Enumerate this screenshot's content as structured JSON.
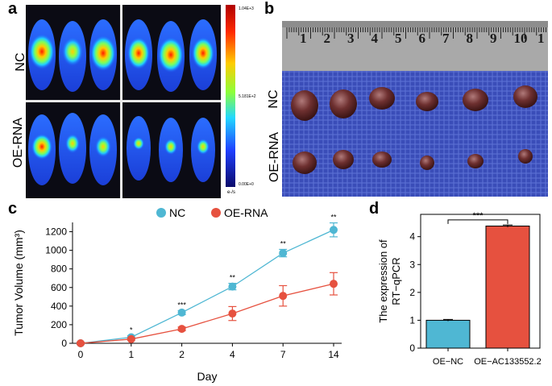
{
  "figure": {
    "panel_a": {
      "letter": "a",
      "row_labels": [
        "NC",
        "OE-RNA"
      ],
      "colorbar": {
        "max": "1.04E+3",
        "mid": "5.181E+2",
        "min": "0.00E+0",
        "unit": "e-/s"
      }
    },
    "panel_b": {
      "letter": "b",
      "row_labels": [
        "NC",
        "OE-RNA"
      ],
      "ruler_numbers": [
        "1",
        "2",
        "3",
        "4",
        "5",
        "6",
        "7",
        "8",
        "9",
        "10",
        "1"
      ]
    },
    "panel_c": {
      "letter": "c"
    },
    "panel_d": {
      "letter": "d"
    }
  },
  "chart_data": [
    {
      "type": "line",
      "title": "",
      "legend": [
        "NC",
        "OE-RNA"
      ],
      "legend_position": "top",
      "xlabel": "Day",
      "ylabel": "Tumor Volume (mm³)",
      "categories": [
        "0",
        "1",
        "2",
        "4",
        "7",
        "14"
      ],
      "ylim": [
        0,
        1300
      ],
      "yticks": [
        "0",
        "200",
        "400",
        "600",
        "800",
        "1000",
        "1200"
      ],
      "series": [
        {
          "name": "NC",
          "color": "#4fb7d3",
          "values": [
            0,
            65,
            330,
            610,
            970,
            1220
          ],
          "errors": [
            12,
            18,
            22,
            35,
            40,
            75
          ]
        },
        {
          "name": "OE-RNA",
          "color": "#e6513f",
          "values": [
            0,
            45,
            155,
            320,
            510,
            640
          ],
          "errors": [
            10,
            12,
            20,
            75,
            110,
            120
          ]
        }
      ],
      "significance": [
        "",
        "*",
        "***",
        "**",
        "**",
        "**"
      ]
    },
    {
      "type": "bar",
      "title": "",
      "ylabel": "The expression of RT−qPCR",
      "categories": [
        "OE−NC",
        "OE−AC133552.2"
      ],
      "values": [
        1.0,
        4.38
      ],
      "errors": [
        0.03,
        0.04
      ],
      "colors": [
        "#4fb7d3",
        "#e6513f"
      ],
      "ylim": [
        0,
        4.8
      ],
      "yticks": [
        "0",
        "1",
        "2",
        "3",
        "4"
      ],
      "significance": "***"
    }
  ]
}
